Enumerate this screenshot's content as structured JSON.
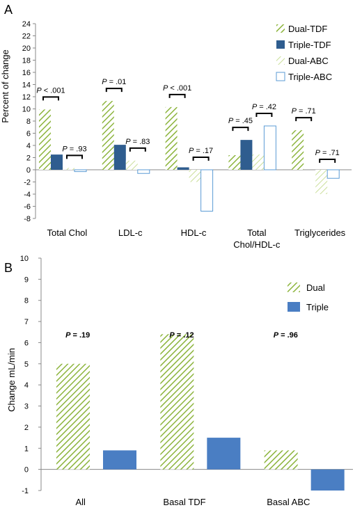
{
  "colors": {
    "dual": "#8CB43C",
    "tdf_triple": "#2F5D8F",
    "abc_triple": "#5B9BD5",
    "triple_b": "#4A7EC3",
    "hatch_light": "#C9DE98"
  },
  "chart_data": [
    {
      "panel": "A",
      "type": "bar",
      "ylabel": "Percent of change",
      "ylim": [
        -8,
        24
      ],
      "yticks": [
        24,
        22,
        20,
        18,
        16,
        14,
        12,
        10,
        8,
        6,
        4,
        2,
        0,
        -2,
        -4,
        -6,
        -8
      ],
      "categories": [
        [
          "Total Chol"
        ],
        [
          "LDL-c"
        ],
        [
          "HDL-c"
        ],
        [
          "Total",
          "Chol/HDL-c"
        ],
        [
          "Triglycerides"
        ]
      ],
      "series": [
        {
          "name": "Dual-TDF",
          "values": [
            9.9,
            11.3,
            10.3,
            2.4,
            6.5
          ]
        },
        {
          "name": "Triple-TDF",
          "values": [
            2.5,
            4.1,
            0.4,
            4.9,
            null
          ]
        },
        {
          "name": "Dual-ABC",
          "values": [
            0.3,
            1.5,
            -2.0,
            2.5,
            -4.0
          ]
        },
        {
          "name": "Triple-ABC",
          "values": [
            -0.3,
            -0.6,
            -6.8,
            7.2,
            -1.4
          ]
        }
      ],
      "pvalues": [
        {
          "cat": 0,
          "pair": "tdf",
          "label": "P < .001"
        },
        {
          "cat": 0,
          "pair": "abc",
          "label": "P = .93"
        },
        {
          "cat": 1,
          "pair": "tdf",
          "label": "P = .01"
        },
        {
          "cat": 1,
          "pair": "abc",
          "label": "P = .83"
        },
        {
          "cat": 2,
          "pair": "tdf",
          "label": "P < .001"
        },
        {
          "cat": 2,
          "pair": "abc",
          "label": "P = .17"
        },
        {
          "cat": 3,
          "pair": "tdf",
          "label": "P = .45"
        },
        {
          "cat": 3,
          "pair": "abc",
          "label": "P = .42"
        },
        {
          "cat": 4,
          "pair": "tdf",
          "label": "P = .71"
        },
        {
          "cat": 4,
          "pair": "abc",
          "label": "P = .71"
        }
      ],
      "legend_position": "top-right",
      "grid": false
    },
    {
      "panel": "B",
      "type": "bar",
      "ylabel": "Change mL/min",
      "ylim": [
        -1,
        10
      ],
      "yticks": [
        10,
        9,
        8,
        7,
        6,
        5,
        4,
        3,
        2,
        1,
        0,
        -1
      ],
      "categories": [
        "All",
        "Basal TDF",
        "Basal ABC"
      ],
      "series": [
        {
          "name": "Dual",
          "values": [
            5.0,
            6.4,
            0.9
          ]
        },
        {
          "name": "Triple",
          "values": [
            0.9,
            1.5,
            -1.0
          ]
        }
      ],
      "pvalues": [
        "P = .19",
        "P = .12",
        "P = .96"
      ],
      "legend_position": "top-right",
      "grid": false
    }
  ]
}
